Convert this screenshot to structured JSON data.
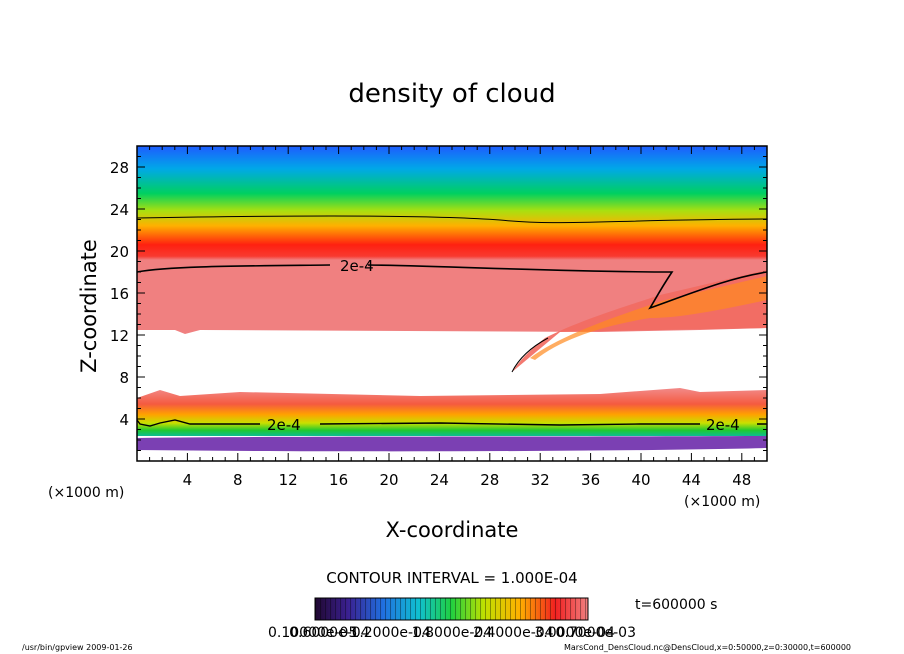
{
  "title": "density of cloud",
  "chart_data": {
    "type": "heatmap",
    "title": "density of cloud",
    "xlabel": "X-coordinate",
    "ylabel": "Z-coordinate",
    "x_unit": "(×1000 m)",
    "y_unit": "(×1000 m)",
    "xlim": [
      0,
      50
    ],
    "ylim": [
      0,
      30
    ],
    "x_ticks": [
      4,
      8,
      12,
      16,
      20,
      24,
      28,
      32,
      36,
      40,
      44,
      48
    ],
    "y_ticks": [
      4,
      8,
      12,
      16,
      20,
      24,
      28
    ],
    "contour_labels": [
      "2e-4",
      "2e-4",
      "2e-4"
    ],
    "contour_interval": "CONTOUR INTERVAL = 1.000E-04",
    "colorbar_labels": [
      "0.10000e-05",
      "0.6000e-04",
      "1.2000e-04",
      "1.8000e-04",
      "2.4000e-04",
      "3.0000e-04",
      "0.7000e-03"
    ],
    "time_label": "t=600000 s",
    "colors": {
      "low": "#3a1080",
      "mid": "#20d020",
      "high": "#f02020",
      "background": "#ffffff"
    },
    "grid": false
  },
  "footer": {
    "left": "/usr/bin/gpview  2009-01-26",
    "right": "MarsCond_DensCloud.nc@DensCloud,x=0:50000,z=0:30000,t=600000"
  }
}
